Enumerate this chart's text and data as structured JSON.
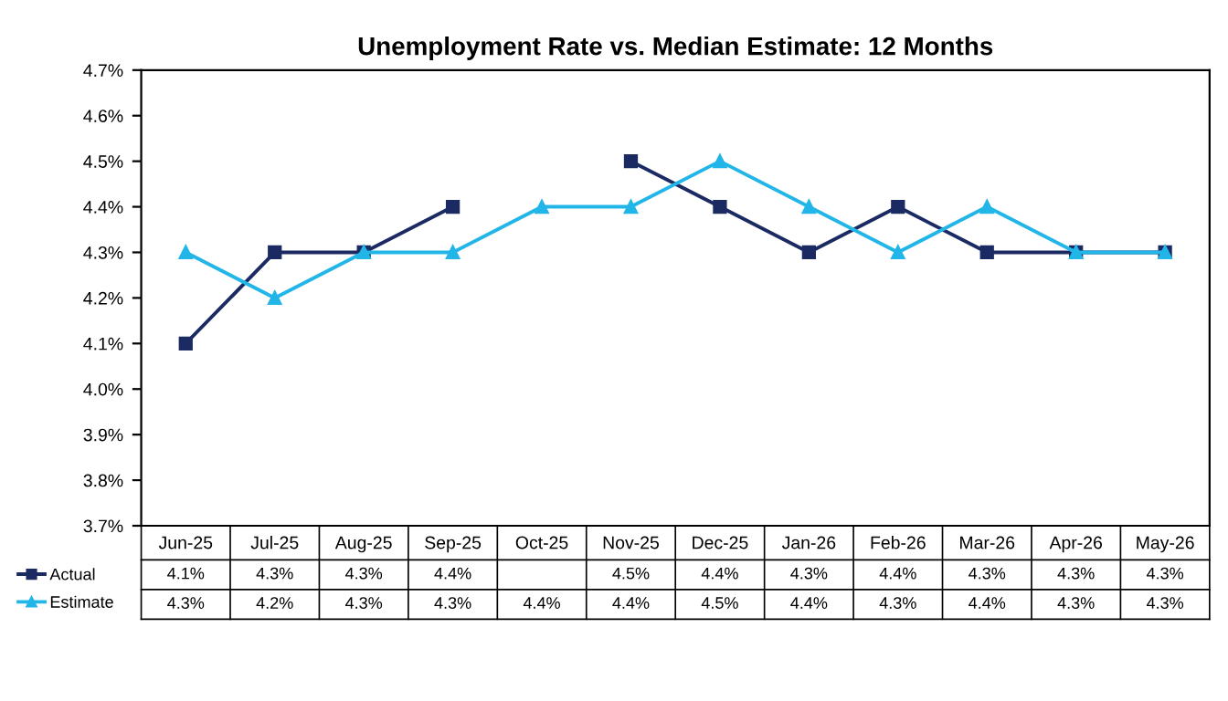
{
  "chart_data": {
    "type": "line",
    "title": "Unemployment Rate vs. Median Estimate: 12 Months",
    "categories": [
      "Jun-25",
      "Jul-25",
      "Aug-25",
      "Sep-25",
      "Oct-25",
      "Nov-25",
      "Dec-25",
      "Jan-26",
      "Feb-26",
      "Mar-26",
      "Apr-26",
      "May-26"
    ],
    "series": [
      {
        "name": "Actual",
        "color": "#1b2a63",
        "marker": "square",
        "values": [
          4.1,
          4.3,
          4.3,
          4.4,
          null,
          4.5,
          4.4,
          4.3,
          4.4,
          4.3,
          4.3,
          4.3
        ],
        "value_labels": [
          "4.1%",
          "4.3%",
          "4.3%",
          "4.4%",
          null,
          "4.5%",
          "4.4%",
          "4.3%",
          "4.4%",
          "4.3%",
          "4.3%",
          "4.3%"
        ]
      },
      {
        "name": "Estimate",
        "color": "#22b5e8",
        "marker": "triangle",
        "values": [
          4.3,
          4.2,
          4.3,
          4.3,
          4.4,
          4.4,
          4.5,
          4.4,
          4.3,
          4.4,
          4.3,
          4.3
        ],
        "value_labels": [
          "4.3%",
          "4.2%",
          "4.3%",
          "4.3%",
          "4.4%",
          "4.4%",
          "4.5%",
          "4.4%",
          "4.3%",
          "4.4%",
          "4.3%",
          "4.3%"
        ]
      }
    ],
    "ylim": [
      3.7,
      4.7
    ],
    "yticks": [
      {
        "value": 3.7,
        "label": "3.7%"
      },
      {
        "value": 3.8,
        "label": "3.8%"
      },
      {
        "value": 3.9,
        "label": "3.9%"
      },
      {
        "value": 4.0,
        "label": "4.0%"
      },
      {
        "value": 4.1,
        "label": "4.1%"
      },
      {
        "value": 4.2,
        "label": "4.2%"
      },
      {
        "value": 4.3,
        "label": "4.3%"
      },
      {
        "value": 4.4,
        "label": "4.4%"
      },
      {
        "value": 4.5,
        "label": "4.5%"
      },
      {
        "value": 4.6,
        "label": "4.6%"
      },
      {
        "value": 4.7,
        "label": "4.7%"
      }
    ],
    "grid": false,
    "legend": "bottom left",
    "line_style": "solid"
  }
}
